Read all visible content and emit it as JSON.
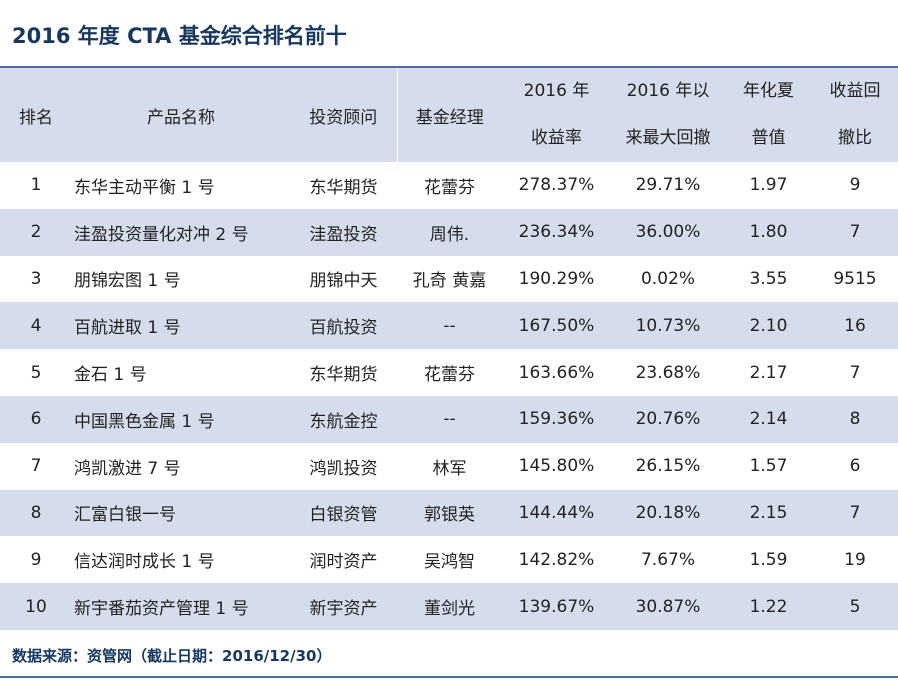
{
  "title": "2016 年度  CTA 基金综合排名前十",
  "headers": {
    "rank": "排名",
    "product": "产品名称",
    "advisor": "投资顾问",
    "manager": "基金经理",
    "return_l1": "2016 年",
    "return_l2": "收益率",
    "drawdown_l1": "2016 年以",
    "drawdown_l2": "来最大回撤",
    "sharpe_l1": "年化夏",
    "sharpe_l2": "普值",
    "ratio_l1": "收益回",
    "ratio_l2": "撤比"
  },
  "rows": [
    {
      "rank": "1",
      "product": "东华主动平衡 1 号",
      "advisor": "东华期货",
      "manager": "花蕾芬",
      "return": "278.37%",
      "drawdown": "29.71%",
      "sharpe": "1.97",
      "ratio": "9"
    },
    {
      "rank": "2",
      "product": "洼盈投资量化对冲 2 号",
      "advisor": "洼盈投资",
      "manager": "周伟.",
      "return": "236.34%",
      "drawdown": "36.00%",
      "sharpe": "1.80",
      "ratio": "7"
    },
    {
      "rank": "3",
      "product": "朋锦宏图 1 号",
      "advisor": "朋锦中天",
      "manager": "孔奇  黄嘉",
      "return": "190.29%",
      "drawdown": "0.02%",
      "sharpe": "3.55",
      "ratio": "9515"
    },
    {
      "rank": "4",
      "product": "百航进取 1 号",
      "advisor": "百航投资",
      "manager": "--",
      "return": "167.50%",
      "drawdown": "10.73%",
      "sharpe": "2.10",
      "ratio": "16"
    },
    {
      "rank": "5",
      "product": "金石 1 号",
      "advisor": "东华期货",
      "manager": "花蕾芬",
      "return": "163.66%",
      "drawdown": "23.68%",
      "sharpe": "2.17",
      "ratio": "7"
    },
    {
      "rank": "6",
      "product": "中国黑色金属 1 号",
      "advisor": "东航金控",
      "manager": "--",
      "return": "159.36%",
      "drawdown": "20.76%",
      "sharpe": "2.14",
      "ratio": "8"
    },
    {
      "rank": "7",
      "product": "鸿凯激进 7 号",
      "advisor": "鸿凯投资",
      "manager": "林军",
      "return": "145.80%",
      "drawdown": "26.15%",
      "sharpe": "1.57",
      "ratio": "6"
    },
    {
      "rank": "8",
      "product": "汇富白银一号",
      "advisor": "白银资管",
      "manager": "郭银英",
      "return": "144.44%",
      "drawdown": "20.18%",
      "sharpe": "2.15",
      "ratio": "7"
    },
    {
      "rank": "9",
      "product": "信达润时成长 1 号",
      "advisor": "润时资产",
      "manager": "吴鸿智",
      "return": "142.82%",
      "drawdown": "7.67%",
      "sharpe": "1.59",
      "ratio": "19"
    },
    {
      "rank": "10",
      "product": "新宇番茄资产管理 1 号",
      "advisor": "新宇资产",
      "manager": "董剑光",
      "return": "139.67%",
      "drawdown": "30.87%",
      "sharpe": "1.22",
      "ratio": "5"
    }
  ],
  "source": "数据来源：资管网（截止日期：2016/12/30）"
}
